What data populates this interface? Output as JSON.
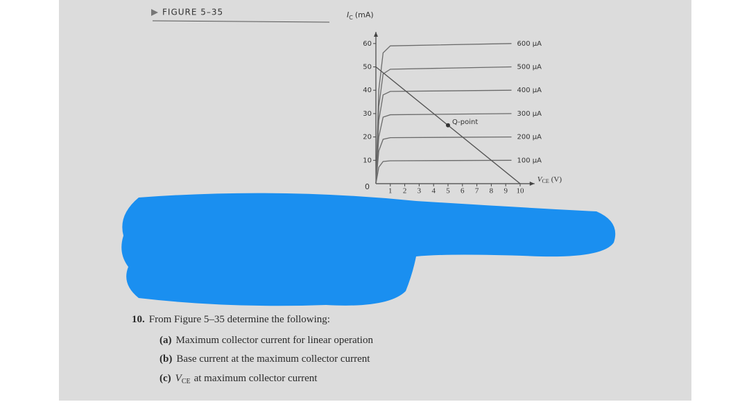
{
  "figure_label": "FIGURE 5–35",
  "chart_data": {
    "type": "line",
    "y_label": {
      "main": "I",
      "sub": "C",
      "unit": "(mA)"
    },
    "x_label": {
      "main": "V",
      "sub": "CE",
      "unit": "(V)"
    },
    "origin_label": "0",
    "x": [
      0,
      0.2,
      0.5,
      1,
      9.4
    ],
    "series": [
      {
        "name": "600 µA",
        "color": "#6a6a6a",
        "values": [
          0,
          40,
          56,
          59,
          60
        ]
      },
      {
        "name": "500 µA",
        "color": "#6a6a6a",
        "values": [
          0,
          33,
          47,
          49,
          50
        ]
      },
      {
        "name": "400 µA",
        "color": "#6a6a6a",
        "values": [
          0,
          27,
          38,
          39.5,
          40
        ]
      },
      {
        "name": "300 µA",
        "color": "#6a6a6a",
        "values": [
          0,
          20,
          28.5,
          29.5,
          30
        ]
      },
      {
        "name": "200 µA",
        "color": "#6a6a6a",
        "values": [
          0,
          14,
          19,
          19.7,
          20
        ]
      },
      {
        "name": "100 µA",
        "color": "#6a6a6a",
        "values": [
          0,
          7,
          9.5,
          9.8,
          10
        ]
      }
    ],
    "load_line": {
      "x": [
        0,
        10
      ],
      "values": [
        50,
        0
      ]
    },
    "q_point": {
      "label": "Q-point",
      "x": 5,
      "y": 25
    },
    "xlim": [
      0,
      11
    ],
    "ylim": [
      0,
      65
    ],
    "xticks": [
      1,
      2,
      3,
      4,
      5,
      6,
      7,
      8,
      9,
      10
    ],
    "yticks": [
      10,
      20,
      30,
      40,
      50,
      60
    ]
  },
  "question": {
    "number": "10.",
    "text": "From Figure 5–35 determine the following:",
    "items": [
      {
        "label": "(a)",
        "text": "Maximum collector current for linear operation"
      },
      {
        "label": "(b)",
        "text": "Base current at the maximum collector current"
      },
      {
        "label": "(c)",
        "main": "V",
        "sub": "CE",
        "text": "at maximum collector current"
      }
    ]
  }
}
